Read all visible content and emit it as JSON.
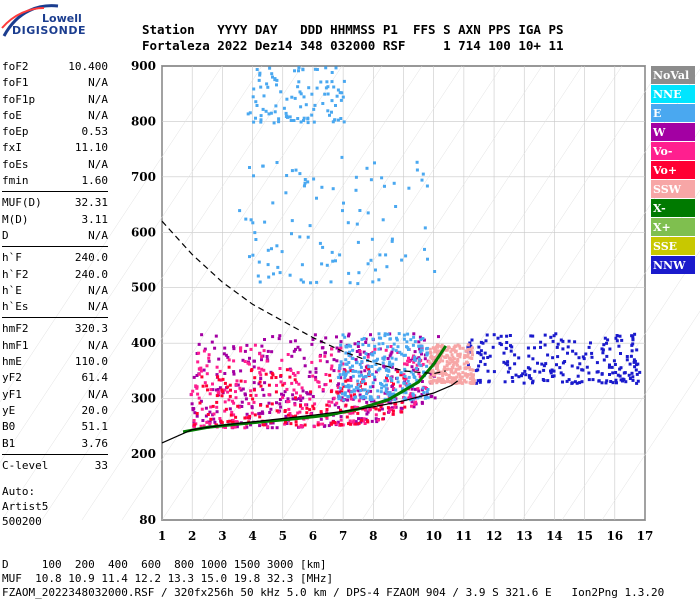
{
  "logo": {
    "line1": "Lowell",
    "line2": "DIGISONDE"
  },
  "header": {
    "labels": [
      "Station",
      "YYYY",
      "DAY",
      "DDD",
      "HHMMSS",
      "P1",
      "FFS",
      "S",
      "AXN",
      "PPS",
      "IGA",
      "PS"
    ],
    "values": [
      "Fortaleza",
      "2022",
      "Dez14",
      "348",
      "032000",
      "RSF",
      "",
      "1",
      "714",
      "100",
      "10+",
      "11"
    ]
  },
  "params": [
    [
      {
        "k": "foF2",
        "v": "10.400"
      },
      {
        "k": "foF1",
        "v": "N/A"
      },
      {
        "k": "foF1p",
        "v": "N/A"
      },
      {
        "k": "foE",
        "v": "N/A"
      },
      {
        "k": "foEp",
        "v": "0.53"
      },
      {
        "k": "fxI",
        "v": "11.10"
      },
      {
        "k": "foEs",
        "v": "N/A"
      },
      {
        "k": "fmin",
        "v": "1.60"
      }
    ],
    [
      {
        "k": "MUF(D)",
        "v": "32.31"
      },
      {
        "k": "M(D)",
        "v": "3.11"
      },
      {
        "k": "D",
        "v": "N/A"
      }
    ],
    [
      {
        "k": "h`F",
        "v": "240.0"
      },
      {
        "k": "h`F2",
        "v": "240.0"
      },
      {
        "k": "h`E",
        "v": "N/A"
      },
      {
        "k": "h`Es",
        "v": "N/A"
      }
    ],
    [
      {
        "k": "hmF2",
        "v": "320.3"
      },
      {
        "k": "hmF1",
        "v": "N/A"
      },
      {
        "k": "hmE",
        "v": "110.0"
      },
      {
        "k": "yF2",
        "v": "61.4"
      },
      {
        "k": "yF1",
        "v": "N/A"
      },
      {
        "k": "yE",
        "v": "20.0"
      },
      {
        "k": "B0",
        "v": "51.1"
      },
      {
        "k": "B1",
        "v": "3.76"
      }
    ],
    [
      {
        "k": "C-level",
        "v": "33"
      }
    ]
  ],
  "autoscale": {
    "line1": "Auto:",
    "line2": "Artist5",
    "line3": "500200"
  },
  "bottom": {
    "d_label": "D",
    "d_values": [
      "100",
      "200",
      "400",
      "600",
      "800",
      "1000",
      "1500",
      "3000"
    ],
    "d_unit": "[km]",
    "muf_label": "MUF",
    "muf_values": [
      "10.8",
      "10.9",
      "11.4",
      "12.2",
      "13.3",
      "15.0",
      "19.8",
      "32.3"
    ],
    "muf_unit": "[MHz]",
    "footer": "FZAOM_2022348032000.RSF / 320fx256h 50 kHz 5.0 km / DPS-4 FZAOM 904 / 3.9 S 321.6 E   Ion2Png 1.3.20"
  },
  "chart_data": {
    "type": "scatter",
    "x_ticks": [
      "1",
      "2",
      "3",
      "4",
      "5",
      "6",
      "7",
      "8",
      "9",
      "10",
      "11",
      "12",
      "13",
      "14",
      "15",
      "16",
      "17"
    ],
    "y_ticks": [
      "80",
      "200",
      "300",
      "400",
      "500",
      "600",
      "700",
      "800",
      "900"
    ],
    "xlim": [
      1,
      17
    ],
    "y_scale_note": "virtual height axis with 80 at bottom, then 200 to 900 at 100 km steps",
    "grid": true,
    "legend_position": "right",
    "legend": [
      {
        "name": "NoVal",
        "color": "#8c8c8c"
      },
      {
        "name": "NNE",
        "color": "#00e5ff"
      },
      {
        "name": "E",
        "color": "#4aa8f0"
      },
      {
        "name": "W",
        "color": "#a300a3"
      },
      {
        "name": "Vo-",
        "color": "#ff1f8f"
      },
      {
        "name": "Vo+",
        "color": "#ff0033"
      },
      {
        "name": "SSW",
        "color": "#f7a6a6"
      },
      {
        "name": "X-",
        "color": "#007a00"
      },
      {
        "name": "X+",
        "color": "#7fbf4f"
      },
      {
        "name": "SSE",
        "color": "#c8c800"
      },
      {
        "name": "NNW",
        "color": "#1a1acc"
      }
    ],
    "clusters": [
      {
        "dir": "W",
        "color": "#a300a3",
        "fmin": 1.9,
        "fmax": 10.2,
        "hmin": 250,
        "hmax": 420,
        "density": 0.9
      },
      {
        "dir": "Vo-",
        "color": "#ff1f8f",
        "fmin": 1.9,
        "fmax": 9.8,
        "hmin": 250,
        "hmax": 400,
        "density": 0.7
      },
      {
        "dir": "Vo+",
        "color": "#ff0033",
        "fmin": 2.0,
        "fmax": 9.0,
        "hmin": 255,
        "hmax": 360,
        "density": 0.4
      },
      {
        "dir": "E",
        "color": "#4aa8f0",
        "fmin": 6.8,
        "fmax": 9.8,
        "hmin": 300,
        "hmax": 420,
        "density": 0.6
      },
      {
        "dir": "NNW",
        "color": "#1a1acc",
        "fmin": 11.0,
        "fmax": 16.8,
        "hmin": 330,
        "hmax": 420,
        "density": 0.55
      },
      {
        "dir": "SSW",
        "color": "#f7a6a6",
        "fmin": 9.8,
        "fmax": 11.3,
        "hmin": 330,
        "hmax": 400,
        "density": 0.6
      },
      {
        "dir": "E",
        "color": "#4aa8f0",
        "fmin": 3.5,
        "fmax": 10.0,
        "hmin": 510,
        "hmax": 740,
        "density": 0.25
      },
      {
        "dir": "E",
        "color": "#4aa8f0",
        "fmin": 3.8,
        "fmax": 7.0,
        "hmin": 800,
        "hmax": 900,
        "density": 0.25
      }
    ],
    "trace_color": "#007a00",
    "traces": [
      {
        "x": [
          1.7,
          2.5,
          3.5,
          4.5,
          5.5,
          6.5,
          7.5,
          8.5,
          9.5,
          10.0,
          10.4
        ],
        "y": [
          240,
          248,
          254,
          259,
          264,
          270,
          281,
          298,
          330,
          362,
          395
        ]
      }
    ],
    "model_curves": [
      {
        "style": "solid",
        "x": [
          1.0,
          2.0,
          3.0,
          4.0,
          5.0,
          6.0,
          7.0,
          8.0,
          9.0,
          10.0,
          10.6,
          10.8
        ],
        "y": [
          220,
          244,
          252,
          258,
          264,
          270,
          277,
          285,
          296,
          310,
          324,
          332
        ]
      },
      {
        "style": "dashed",
        "x": [
          1.0,
          2.0,
          3.0,
          4.0,
          5.0,
          6.0,
          7.0,
          8.0,
          9.0,
          10.0,
          10.4
        ],
        "y": [
          620,
          560,
          510,
          470,
          440,
          410,
          385,
          365,
          350,
          345,
          350
        ]
      }
    ]
  }
}
